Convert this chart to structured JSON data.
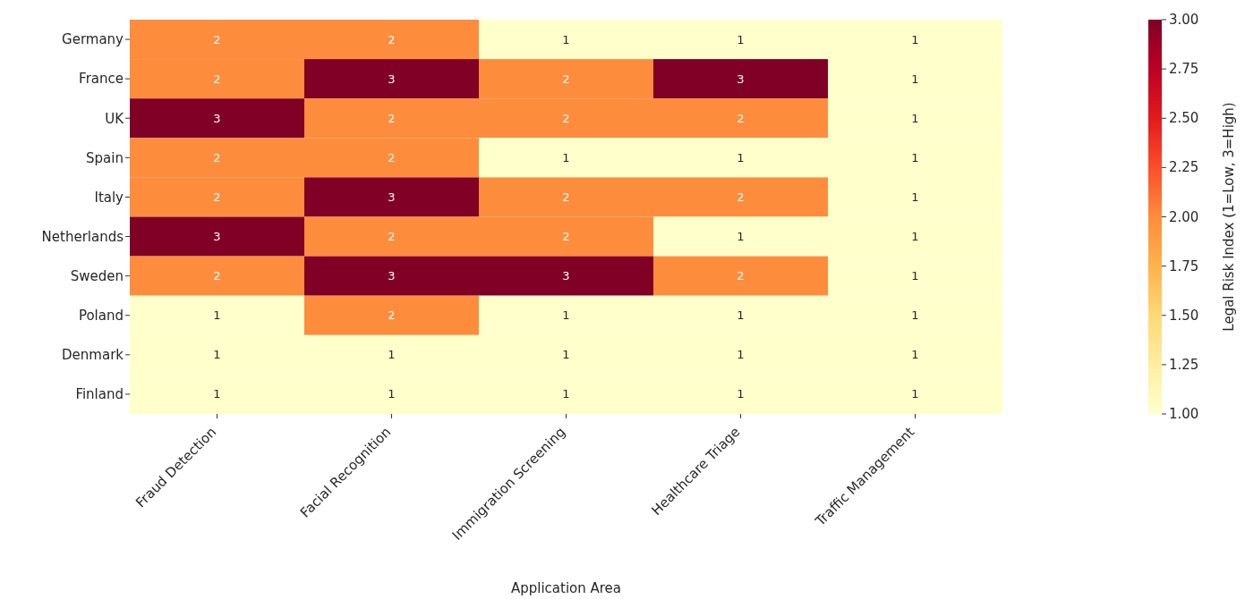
{
  "chart_data": {
    "type": "heatmap",
    "xlabel": "Application Area",
    "clabel": "Legal Risk Index (1=Low, 3=High)",
    "categories": [
      "Fraud Detection",
      "Facial Recognition",
      "Immigration Screening",
      "Healthcare Triage",
      "Traffic Management"
    ],
    "y_categories": [
      "Germany",
      "France",
      "UK",
      "Spain",
      "Italy",
      "Netherlands",
      "Sweden",
      "Poland",
      "Denmark",
      "Finland"
    ],
    "cells": [
      [
        2,
        2,
        1,
        1,
        1
      ],
      [
        2,
        3,
        2,
        3,
        1
      ],
      [
        3,
        2,
        2,
        2,
        1
      ],
      [
        2,
        2,
        1,
        1,
        1
      ],
      [
        2,
        3,
        2,
        2,
        1
      ],
      [
        3,
        2,
        2,
        1,
        1
      ],
      [
        2,
        3,
        3,
        2,
        1
      ],
      [
        1,
        2,
        1,
        1,
        1
      ],
      [
        1,
        1,
        1,
        1,
        1
      ],
      [
        1,
        1,
        1,
        1,
        1
      ]
    ],
    "data_labels": true,
    "clim": [
      1,
      3
    ],
    "cticks": [
      {
        "value": 1,
        "label": "1.00"
      },
      {
        "value": 1.25,
        "label": "1.25"
      },
      {
        "value": 1.5,
        "label": "1.50"
      },
      {
        "value": 1.75,
        "label": "1.75"
      },
      {
        "value": 2,
        "label": "2.00"
      },
      {
        "value": 2.25,
        "label": "2.25"
      },
      {
        "value": 2.5,
        "label": "2.50"
      },
      {
        "value": 2.75,
        "label": "2.75"
      },
      {
        "value": 3,
        "label": "3.00"
      }
    ],
    "grid": false
  }
}
